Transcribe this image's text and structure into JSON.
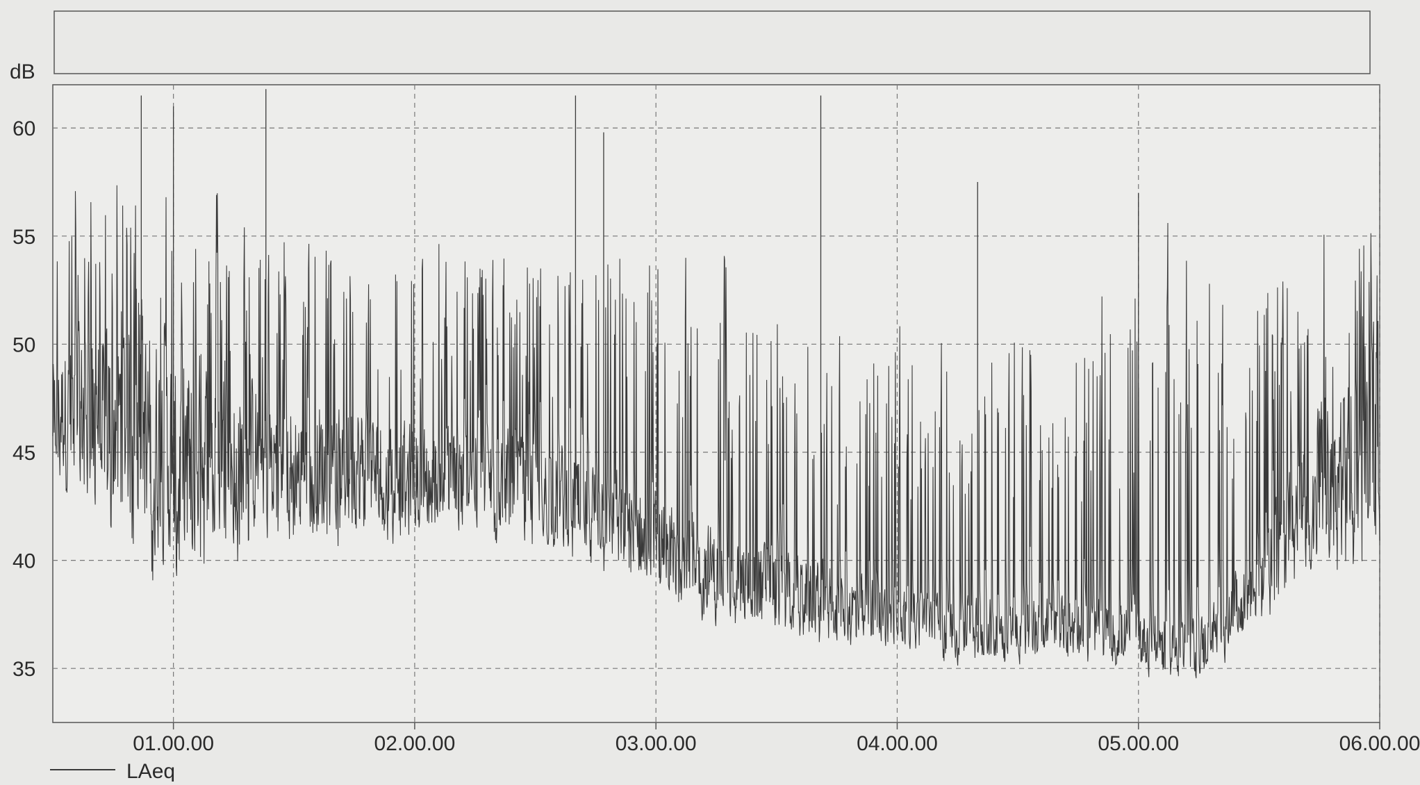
{
  "chart_data": {
    "type": "line",
    "title": "",
    "xlabel": "",
    "ylabel": "dB",
    "ylim": [
      32.5,
      62
    ],
    "xlim": [
      "00.30.00",
      "06.00.00"
    ],
    "x_ticks": [
      "01.00.00",
      "02.00.00",
      "03.00.00",
      "04.00.00",
      "05.00.00",
      "06.00.00"
    ],
    "y_ticks": [
      35,
      40,
      45,
      50,
      55,
      60
    ],
    "grid": true,
    "legend_position": "bottom-left",
    "series": [
      {
        "name": "LAeq",
        "color": "#3a3a3a",
        "envelope": {
          "x": [
            "00.30.00",
            "00.40.00",
            "00.50.00",
            "01.00.00",
            "01.15.00",
            "01.30.00",
            "01.45.00",
            "02.00.00",
            "02.15.00",
            "02.30.00",
            "02.45.00",
            "03.00.00",
            "03.15.00",
            "03.30.00",
            "03.45.00",
            "04.00.00",
            "04.15.00",
            "04.30.00",
            "04.45.00",
            "05.00.00",
            "05.15.00",
            "05.30.00",
            "05.45.00",
            "06.00.00"
          ],
          "base": [
            47,
            47,
            46.5,
            45,
            45,
            44.5,
            44.5,
            44,
            44,
            43.5,
            42.5,
            41,
            39.5,
            39,
            38,
            37.5,
            37,
            37,
            37,
            36.5,
            36,
            39,
            44,
            45
          ],
          "low": [
            43,
            41,
            39,
            37.5,
            39,
            40,
            40,
            40.5,
            40.5,
            40,
            39,
            37.5,
            36.5,
            36,
            35.5,
            35.5,
            35,
            35,
            35,
            34.5,
            34,
            36.5,
            38,
            39
          ],
          "peak": [
            59,
            61.5,
            61,
            61,
            58,
            58,
            57.5,
            58,
            57.5,
            57,
            58,
            59,
            56,
            55,
            52,
            54.5,
            53,
            55,
            54,
            57,
            56.5,
            56,
            59,
            58
          ]
        },
        "peaks": [
          {
            "x": "00.52.00",
            "y": 61.5
          },
          {
            "x": "01.00.00",
            "y": 61.0
          },
          {
            "x": "01.23.00",
            "y": 61.8
          },
          {
            "x": "02.40.00",
            "y": 61.5
          },
          {
            "x": "02.47.00",
            "y": 59.8
          },
          {
            "x": "03.41.00",
            "y": 61.5
          },
          {
            "x": "04.20.00",
            "y": 57.5
          },
          {
            "x": "05.00.00",
            "y": 57.0
          }
        ]
      }
    ]
  }
}
